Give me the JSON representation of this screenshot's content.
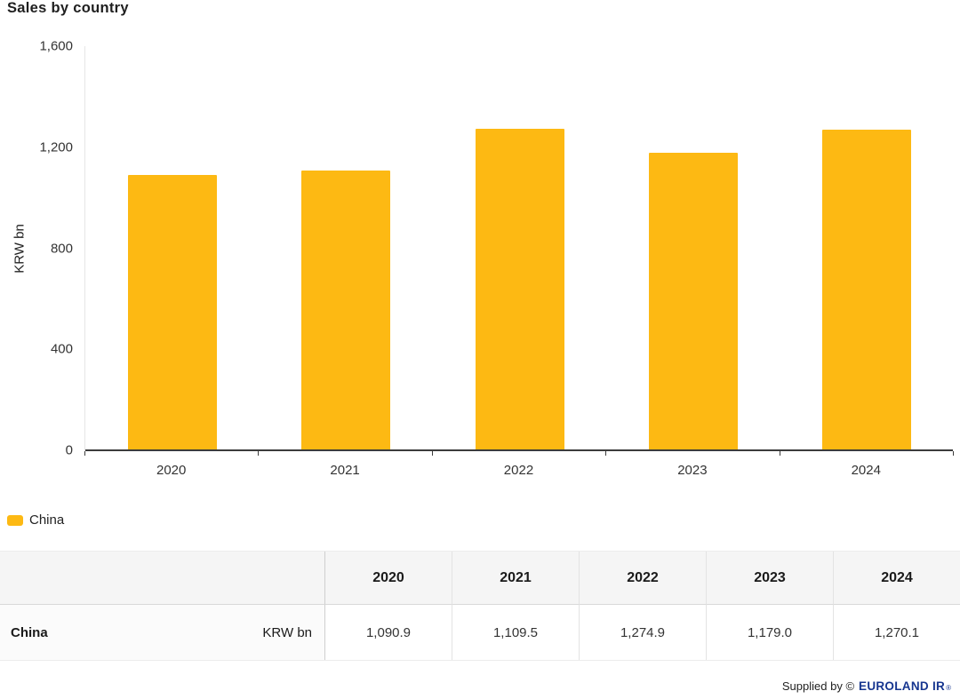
{
  "chart": {
    "title": "Sales by country",
    "ylabel": "KRW bn",
    "legend": [
      {
        "label": "China",
        "color": "#FDB913"
      }
    ]
  },
  "chart_data": {
    "type": "bar",
    "title": "Sales by country",
    "categories": [
      "2020",
      "2021",
      "2022",
      "2023",
      "2024"
    ],
    "series": [
      {
        "name": "China",
        "values": [
          1090.9,
          1109.5,
          1274.9,
          1179.0,
          1270.1
        ]
      }
    ],
    "xlabel": "",
    "ylabel": "KRW bn",
    "ylim": [
      0,
      1600
    ],
    "yticks": [
      0,
      400,
      800,
      1200,
      1600
    ],
    "ytick_labels": [
      "0",
      "400",
      "800",
      "1,200",
      "1,600"
    ],
    "bar_color": "#FDB913",
    "grid": false,
    "legend_position": "bottom-left"
  },
  "table": {
    "col_headers": [
      "2020",
      "2021",
      "2022",
      "2023",
      "2024"
    ],
    "rows": [
      {
        "name": "China",
        "unit": "KRW bn",
        "values": [
          "1,090.9",
          "1,109.5",
          "1,274.9",
          "1,179.0",
          "1,270.1"
        ]
      }
    ]
  },
  "footer": {
    "supplied_by": "Supplied by ©",
    "brand": "EUROLAND IR",
    "reg_mark": "®"
  }
}
